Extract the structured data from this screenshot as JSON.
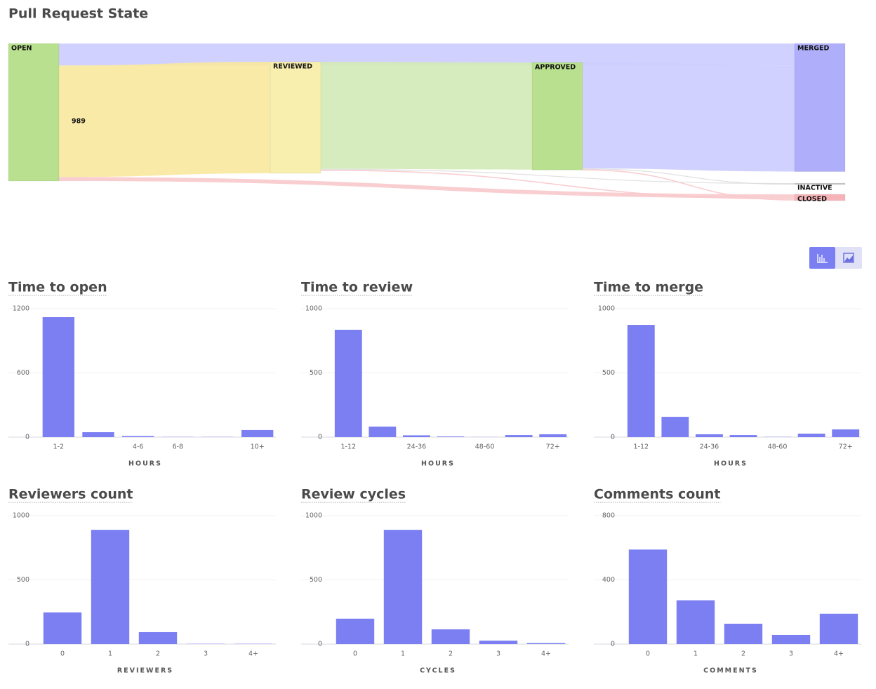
{
  "chart_data": [
    {
      "type": "sankey",
      "title": "Pull Request State",
      "nodes": [
        {
          "label": "OPEN",
          "color": "#b8e08e"
        },
        {
          "label": "REVIEWED",
          "color": "#f8eeae"
        },
        {
          "label": "APPROVED",
          "color": "#b8e08e"
        },
        {
          "label": "MERGED",
          "color": "#aeaefb"
        },
        {
          "label": "INACTIVE",
          "color": "#c8c8c8"
        },
        {
          "label": "CLOSED",
          "color": "#f6b4b8"
        }
      ],
      "links": [
        {
          "source": 0,
          "target": 3,
          "value": 195,
          "color": "#ccccff"
        },
        {
          "source": 0,
          "target": 1,
          "value": 989,
          "color": "#f8e89e",
          "label": "989"
        },
        {
          "source": 0,
          "target": 5,
          "value": 35,
          "color": "#f8c9cc"
        },
        {
          "source": 1,
          "target": 2,
          "value": 950,
          "color": "#d3eab7"
        },
        {
          "source": 1,
          "target": 4,
          "value": 3,
          "color": "#dddddd"
        },
        {
          "source": 1,
          "target": 5,
          "value": 10,
          "color": "#f8c9cc"
        },
        {
          "source": 2,
          "target": 3,
          "value": 940,
          "color": "#ccccff"
        },
        {
          "source": 2,
          "target": 4,
          "value": 3,
          "color": "#dddddd"
        },
        {
          "source": 2,
          "target": 5,
          "value": 10,
          "color": "#f8c9cc"
        }
      ]
    },
    {
      "type": "bar",
      "title": "Time to open",
      "xlabel": "HOURS",
      "color": "#7b7ff2",
      "categories": [
        "1-2",
        null,
        "4-6",
        "6-8",
        null,
        "10+"
      ],
      "values": [
        1121,
        46,
        10,
        2,
        2,
        66
      ],
      "ylim": [
        0,
        1200
      ],
      "yticks": [
        0,
        600,
        1200
      ]
    },
    {
      "type": "bar",
      "title": "Time to review",
      "xlabel": "HOURS",
      "color": "#7b7ff2",
      "categories": [
        "1-12",
        null,
        "24-36",
        null,
        "48-60",
        null,
        "72+"
      ],
      "values": [
        836,
        82,
        14,
        5,
        1,
        16,
        22
      ],
      "ylim": [
        0,
        1000
      ],
      "yticks": [
        0,
        500,
        1000
      ]
    },
    {
      "type": "bar",
      "title": "Time to merge",
      "xlabel": "HOURS",
      "color": "#7b7ff2",
      "categories": [
        "1-12",
        null,
        "24-36",
        null,
        "48-60",
        null,
        "72+"
      ],
      "values": [
        874,
        158,
        22,
        16,
        2,
        27,
        60
      ],
      "ylim": [
        0,
        1000
      ],
      "yticks": [
        0,
        500,
        1000
      ]
    },
    {
      "type": "bar",
      "title": "Reviewers count",
      "xlabel": "REVIEWERS",
      "color": "#7b7ff2",
      "categories": [
        "0",
        "1",
        "2",
        "3",
        "4+"
      ],
      "values": [
        247,
        890,
        93,
        2,
        2
      ],
      "ylim": [
        0,
        1000
      ],
      "yticks": [
        0,
        500,
        1000
      ]
    },
    {
      "type": "bar",
      "title": "Review cycles",
      "xlabel": "CYCLES",
      "color": "#7b7ff2",
      "categories": [
        "0",
        "1",
        "2",
        "3",
        "4+"
      ],
      "values": [
        198,
        890,
        115,
        27,
        8
      ],
      "ylim": [
        0,
        1000
      ],
      "yticks": [
        0,
        500,
        1000
      ]
    },
    {
      "type": "bar",
      "title": "Comments count",
      "xlabel": "COMMENTS",
      "color": "#7b7ff2",
      "categories": [
        "0",
        "1",
        "2",
        "3",
        "4+"
      ],
      "values": [
        589,
        273,
        127,
        57,
        189
      ],
      "ylim": [
        0,
        800
      ],
      "yticks": [
        0,
        400,
        800
      ]
    }
  ]
}
